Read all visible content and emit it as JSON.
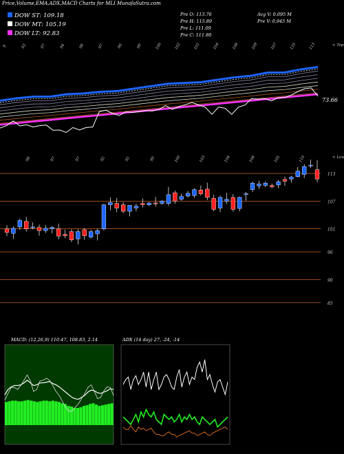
{
  "header": "Price,Volume,EMA,ADX,MACD Charts for MLI MunafaSutra.com",
  "legend": [
    {
      "label": "DOW ST: 109.18",
      "color": "#1e66ff"
    },
    {
      "label": "DOW MT: 105.19",
      "color": "#ffffff"
    },
    {
      "label": "DOW LT: 92.83",
      "color": "#ff33ff"
    }
  ],
  "stats": {
    "prev_open": "Pre   O: 113.76",
    "prev_high": "Pre   H: 115.89",
    "prev_low": "Pre   L: 111.09",
    "prev_close": "Pre   C: 111.80",
    "avg_volume": "Avg V: 0.095 M",
    "prev_volume": "Pre   V: 0.945 M"
  },
  "colors": {
    "up": "#1e66ff",
    "down": "#ff2020",
    "short": "#1e66ff",
    "mid": "#ffffff",
    "long": "#ff33ff",
    "hline": "#cc6622"
  },
  "chart_data": [
    {
      "type": "line",
      "name": "ema_panel",
      "corner_label": "< Top",
      "price_ticks": [
        "9",
        "93",
        "97",
        "94",
        "98",
        "97",
        "99",
        "99",
        "100",
        "102",
        "101",
        "104",
        "108",
        "109",
        "107",
        "110",
        "113"
      ],
      "marked_value": "73.66",
      "series": [
        {
          "values": [
            73.8,
            74.1,
            74.3,
            74.3,
            74.6,
            74.7,
            74.9,
            75.0,
            75.3,
            75.6,
            75.9,
            76.0,
            76.1,
            76.4,
            76.7,
            76.9,
            77.3,
            77.3,
            77.7,
            78.0
          ]
        },
        {
          "values": [
            73.0,
            73.2,
            73.5,
            73.6,
            73.8,
            74.1,
            74.3,
            74.4,
            74.6,
            74.9,
            75.1,
            75.2,
            75.4,
            75.6,
            75.8,
            76.0,
            76.3,
            76.5,
            76.7,
            77.0
          ]
        },
        {
          "values": [
            72.0,
            72.2,
            72.4,
            72.6,
            72.8,
            73.0,
            73.2,
            73.4,
            73.6,
            73.8,
            74.0,
            74.2,
            74.4,
            74.6,
            74.8,
            75.0,
            75.2,
            75.4,
            75.6,
            75.8
          ]
        }
      ]
    },
    {
      "type": "candlestick",
      "name": "price_panel",
      "corner_label": "< Lower",
      "top_ticks": [
        "98",
        "97",
        "97",
        "92",
        "95",
        "99",
        "100",
        "103",
        "104",
        "108",
        "105",
        "110"
      ],
      "hlines": [
        {
          "value": 113,
          "label": "113"
        },
        {
          "value": 107,
          "label": "107"
        },
        {
          "value": 101,
          "label": "101"
        },
        {
          "value": 96,
          "label": "96"
        },
        {
          "value": 90,
          "label": "90"
        },
        {
          "value": 85,
          "label": "85"
        }
      ],
      "ylim": [
        82,
        116
      ],
      "candles": [
        {
          "o": 101.0,
          "h": 101.8,
          "l": 99.4,
          "c": 100.2
        },
        {
          "o": 100.0,
          "h": 101.5,
          "l": 98.8,
          "c": 101.1
        },
        {
          "o": 101.4,
          "h": 103.2,
          "l": 100.8,
          "c": 102.8
        },
        {
          "o": 102.6,
          "h": 103.6,
          "l": 100.4,
          "c": 101.0
        },
        {
          "o": 101.2,
          "h": 102.4,
          "l": 100.9,
          "c": 101.4
        },
        {
          "o": 101.3,
          "h": 101.9,
          "l": 99.5,
          "c": 100.6
        },
        {
          "o": 100.6,
          "h": 101.8,
          "l": 100.1,
          "c": 101.1
        },
        {
          "o": 101.0,
          "h": 101.6,
          "l": 100.0,
          "c": 101.3
        },
        {
          "o": 101.0,
          "h": 102.1,
          "l": 98.7,
          "c": 99.4
        },
        {
          "o": 99.8,
          "h": 100.8,
          "l": 99.0,
          "c": 99.5
        },
        {
          "o": 100.4,
          "h": 100.9,
          "l": 98.1,
          "c": 98.6
        },
        {
          "o": 98.8,
          "h": 100.9,
          "l": 97.6,
          "c": 100.4
        },
        {
          "o": 100.8,
          "h": 101.1,
          "l": 98.6,
          "c": 99.5
        },
        {
          "o": 99.2,
          "h": 100.8,
          "l": 98.9,
          "c": 100.4
        },
        {
          "o": 99.9,
          "h": 101.0,
          "l": 98.5,
          "c": 100.6
        },
        {
          "o": 101.0,
          "h": 106.4,
          "l": 100.6,
          "c": 106.2
        },
        {
          "o": 106.2,
          "h": 107.8,
          "l": 105.0,
          "c": 106.7
        },
        {
          "o": 106.5,
          "h": 107.7,
          "l": 104.6,
          "c": 105.5
        },
        {
          "o": 106.2,
          "h": 106.8,
          "l": 104.4,
          "c": 104.8
        },
        {
          "o": 104.8,
          "h": 106.0,
          "l": 103.7,
          "c": 106.1
        },
        {
          "o": 105.5,
          "h": 106.4,
          "l": 104.8,
          "c": 105.9
        },
        {
          "o": 106.5,
          "h": 107.6,
          "l": 105.6,
          "c": 106.2
        },
        {
          "o": 106.2,
          "h": 106.8,
          "l": 105.9,
          "c": 106.6
        },
        {
          "o": 106.6,
          "h": 107.9,
          "l": 105.8,
          "c": 106.4
        },
        {
          "o": 106.5,
          "h": 107.2,
          "l": 106.2,
          "c": 107.0
        },
        {
          "o": 106.5,
          "h": 110.1,
          "l": 106.0,
          "c": 108.4
        },
        {
          "o": 108.8,
          "h": 109.3,
          "l": 106.4,
          "c": 107.0
        },
        {
          "o": 107.4,
          "h": 108.6,
          "l": 107.1,
          "c": 108.0
        },
        {
          "o": 108.1,
          "h": 109.2,
          "l": 107.8,
          "c": 108.7
        },
        {
          "o": 108.2,
          "h": 109.8,
          "l": 107.7,
          "c": 109.5
        },
        {
          "o": 109.4,
          "h": 110.4,
          "l": 108.2,
          "c": 108.6
        },
        {
          "o": 109.6,
          "h": 111.0,
          "l": 107.2,
          "c": 107.8
        },
        {
          "o": 107.6,
          "h": 108.4,
          "l": 104.8,
          "c": 105.2
        },
        {
          "o": 105.5,
          "h": 108.2,
          "l": 104.6,
          "c": 107.8
        },
        {
          "o": 107.0,
          "h": 108.8,
          "l": 106.4,
          "c": 107.4
        },
        {
          "o": 107.8,
          "h": 108.5,
          "l": 104.7,
          "c": 105.2
        },
        {
          "o": 105.4,
          "h": 108.0,
          "l": 104.8,
          "c": 107.8
        },
        {
          "o": 108.4,
          "h": 109.0,
          "l": 107.1,
          "c": 108.6
        },
        {
          "o": 109.5,
          "h": 111.2,
          "l": 109.0,
          "c": 110.9
        },
        {
          "o": 110.3,
          "h": 111.4,
          "l": 109.6,
          "c": 110.7
        },
        {
          "o": 110.4,
          "h": 111.3,
          "l": 110.0,
          "c": 110.9
        },
        {
          "o": 110.4,
          "h": 110.8,
          "l": 109.8,
          "c": 110.1
        },
        {
          "o": 110.5,
          "h": 111.6,
          "l": 109.8,
          "c": 111.2
        },
        {
          "o": 111.7,
          "h": 112.3,
          "l": 110.3,
          "c": 111.3
        },
        {
          "o": 111.8,
          "h": 112.5,
          "l": 111.0,
          "c": 112.2
        },
        {
          "o": 112.3,
          "h": 114.4,
          "l": 112.1,
          "c": 113.5
        },
        {
          "o": 112.8,
          "h": 115.0,
          "l": 112.0,
          "c": 114.5
        },
        {
          "o": 114.6,
          "h": 116.0,
          "l": 114.2,
          "c": 114.8
        },
        {
          "o": 113.8,
          "h": 115.9,
          "l": 111.1,
          "c": 111.8
        }
      ]
    },
    {
      "type": "line",
      "name": "macd_panel",
      "title": "MACD: (12,26,9) 110.47, 108.83, 2.14",
      "series": [
        {
          "values": [
            4.4,
            5.2,
            5.6,
            5.8,
            5.8,
            5.9,
            6.2,
            6.6,
            6.2,
            5.8,
            5.9,
            6.2,
            6.2,
            6.3,
            6.4,
            6.1,
            5.9,
            5.6,
            5.2,
            4.8,
            4.4,
            4.0,
            3.8,
            3.7,
            4.0,
            4.3,
            4.8,
            5.1,
            5.0,
            4.7,
            4.6,
            4.8,
            5.0,
            5.3,
            5.2
          ]
        },
        {
          "values": [
            3.6,
            4.6,
            5.5,
            5.5,
            5.2,
            5.8,
            6.6,
            7.4,
            6.5,
            4.9,
            5.2,
            6.5,
            6.6,
            6.9,
            6.6,
            5.8,
            4.9,
            4.3,
            3.4,
            2.5,
            1.9,
            1.9,
            2.5,
            3.0,
            3.8,
            4.6,
            5.5,
            5.9,
            4.9,
            3.8,
            4.0,
            5.0,
            5.6,
            5.5,
            4.3
          ]
        }
      ],
      "histogram": [
        3.3,
        3.4,
        3.5,
        3.5,
        3.4,
        3.4,
        3.5,
        3.6,
        3.5,
        3.4,
        3.3,
        3.4,
        3.5,
        3.5,
        3.4,
        3.5,
        3.4,
        3.3,
        3.1,
        3.0,
        2.7,
        2.6,
        2.4,
        2.4,
        2.5,
        2.7,
        2.8,
        3.0,
        3.1,
        2.9,
        2.7,
        2.8,
        2.9,
        3.0,
        3.1
      ]
    },
    {
      "type": "line",
      "name": "adx_panel",
      "title": "ADX (14 day) 27, -24, -14",
      "series": [
        {
          "values": [
            48,
            52,
            54,
            44,
            52,
            55,
            48,
            52,
            58,
            46,
            58,
            44,
            52,
            58,
            44,
            48,
            54,
            56,
            52,
            46,
            44,
            54,
            60,
            46,
            54,
            58,
            48,
            54,
            52,
            62,
            66,
            58,
            68,
            52,
            56,
            48,
            42,
            50,
            52,
            46,
            40,
            50
          ]
        },
        {
          "values": [
            22,
            20,
            18,
            16,
            20,
            24,
            18,
            26,
            22,
            28,
            24,
            22,
            26,
            20,
            18,
            16,
            24,
            22,
            20,
            22,
            18,
            20,
            24,
            18,
            22,
            20,
            24,
            20,
            22,
            18,
            16,
            22,
            20,
            18,
            16,
            18,
            20,
            14,
            16,
            18,
            20,
            22
          ]
        },
        {
          "values": [
            14,
            12,
            12,
            15,
            12,
            10,
            14,
            12,
            13,
            11,
            12,
            13,
            10,
            8,
            8,
            7,
            7,
            9,
            10,
            8,
            8,
            6,
            7,
            8,
            9,
            10,
            11,
            9,
            9,
            7,
            8,
            9,
            10,
            8,
            7,
            9,
            10,
            11,
            12,
            13,
            14,
            12
          ]
        }
      ]
    }
  ]
}
